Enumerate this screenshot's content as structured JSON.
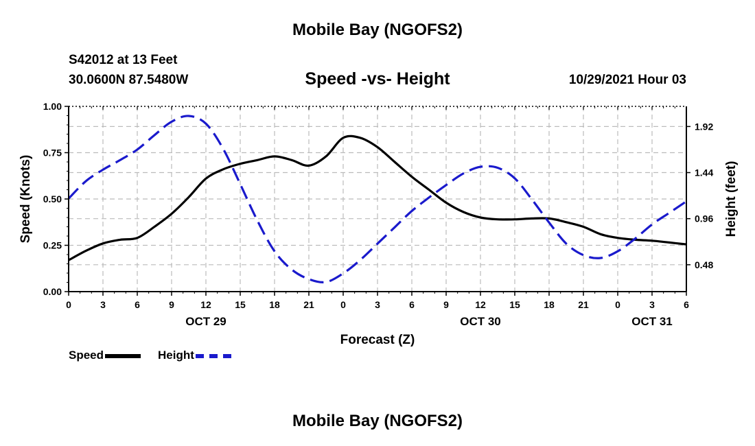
{
  "header": {
    "title": "Mobile Bay (NGOFS2)",
    "station": "S42012 at 13 Feet",
    "coords": "30.0600N  87.5480W",
    "subtitle": "Speed -vs- Height",
    "timestamp": "10/29/2021 Hour 03"
  },
  "footer": {
    "title": "Mobile Bay (NGOFS2)"
  },
  "colors": {
    "speed": "#000000",
    "height": "#1a1acc",
    "grid": "#bbbbbb"
  },
  "chart_data": {
    "type": "line",
    "xlabel": "Forecast (Z)",
    "ylabel": "Speed (Knots)",
    "y2label": "Height (feet)",
    "x_range": [
      0,
      54
    ],
    "x_ticks": [
      {
        "h": 0,
        "label": "0"
      },
      {
        "h": 3,
        "label": "3"
      },
      {
        "h": 6,
        "label": "6"
      },
      {
        "h": 9,
        "label": "9"
      },
      {
        "h": 12,
        "label": "12"
      },
      {
        "h": 15,
        "label": "15"
      },
      {
        "h": 18,
        "label": "18"
      },
      {
        "h": 21,
        "label": "21"
      },
      {
        "h": 24,
        "label": "0"
      },
      {
        "h": 27,
        "label": "3"
      },
      {
        "h": 30,
        "label": "6"
      },
      {
        "h": 33,
        "label": "9"
      },
      {
        "h": 36,
        "label": "12"
      },
      {
        "h": 39,
        "label": "15"
      },
      {
        "h": 42,
        "label": "18"
      },
      {
        "h": 45,
        "label": "21"
      },
      {
        "h": 48,
        "label": "0"
      },
      {
        "h": 51,
        "label": "3"
      },
      {
        "h": 54,
        "label": "6"
      }
    ],
    "date_labels": [
      {
        "h": 12,
        "label": "OCT 29"
      },
      {
        "h": 36,
        "label": "OCT 30"
      },
      {
        "h": 51,
        "label": "OCT 31"
      }
    ],
    "ylim": [
      0,
      1.0
    ],
    "y_ticks": [
      "0.00",
      "0.25",
      "0.50",
      "0.75",
      "1.00"
    ],
    "y2lim": [
      0.2,
      2.13
    ],
    "y2_ticks": [
      "0.48",
      "0.96",
      "1.44",
      "1.92"
    ],
    "grid": true,
    "legend_position": "bottom-left",
    "series": [
      {
        "name": "Speed",
        "axis": "left",
        "style": "solid",
        "x": [
          0,
          1.5,
          3,
          4.5,
          6,
          7.5,
          9,
          10.5,
          12,
          13.5,
          15,
          16.5,
          18,
          19.5,
          21,
          22.5,
          24,
          25.5,
          27,
          28.5,
          30,
          31.5,
          33,
          34.5,
          36,
          37.5,
          39,
          40.5,
          42,
          43.5,
          45,
          46.5,
          48,
          49.5,
          51,
          52.5,
          54
        ],
        "values": [
          0.17,
          0.22,
          0.26,
          0.28,
          0.29,
          0.35,
          0.42,
          0.51,
          0.61,
          0.66,
          0.69,
          0.71,
          0.73,
          0.71,
          0.68,
          0.73,
          0.83,
          0.83,
          0.78,
          0.7,
          0.62,
          0.55,
          0.48,
          0.43,
          0.4,
          0.39,
          0.39,
          0.395,
          0.395,
          0.375,
          0.35,
          0.31,
          0.29,
          0.28,
          0.275,
          0.265,
          0.255
        ]
      },
      {
        "name": "Height",
        "axis": "right",
        "style": "dashed",
        "x": [
          0,
          1.5,
          3,
          4.5,
          6,
          7.5,
          9,
          10.5,
          12,
          13.5,
          15,
          16.5,
          18,
          19.5,
          21,
          22.5,
          24,
          25.5,
          27,
          28.5,
          30,
          31.5,
          33,
          34.5,
          36,
          37.5,
          39,
          40.5,
          42,
          43.5,
          45,
          46.5,
          48,
          49.5,
          51,
          52.5,
          54
        ],
        "values": [
          1.17,
          1.35,
          1.47,
          1.57,
          1.68,
          1.83,
          1.97,
          2.03,
          1.95,
          1.69,
          1.32,
          0.94,
          0.62,
          0.43,
          0.33,
          0.3,
          0.39,
          0.53,
          0.7,
          0.87,
          1.04,
          1.18,
          1.31,
          1.43,
          1.5,
          1.49,
          1.38,
          1.16,
          0.92,
          0.7,
          0.58,
          0.55,
          0.62,
          0.75,
          0.9,
          1.02,
          1.14
        ]
      }
    ]
  }
}
